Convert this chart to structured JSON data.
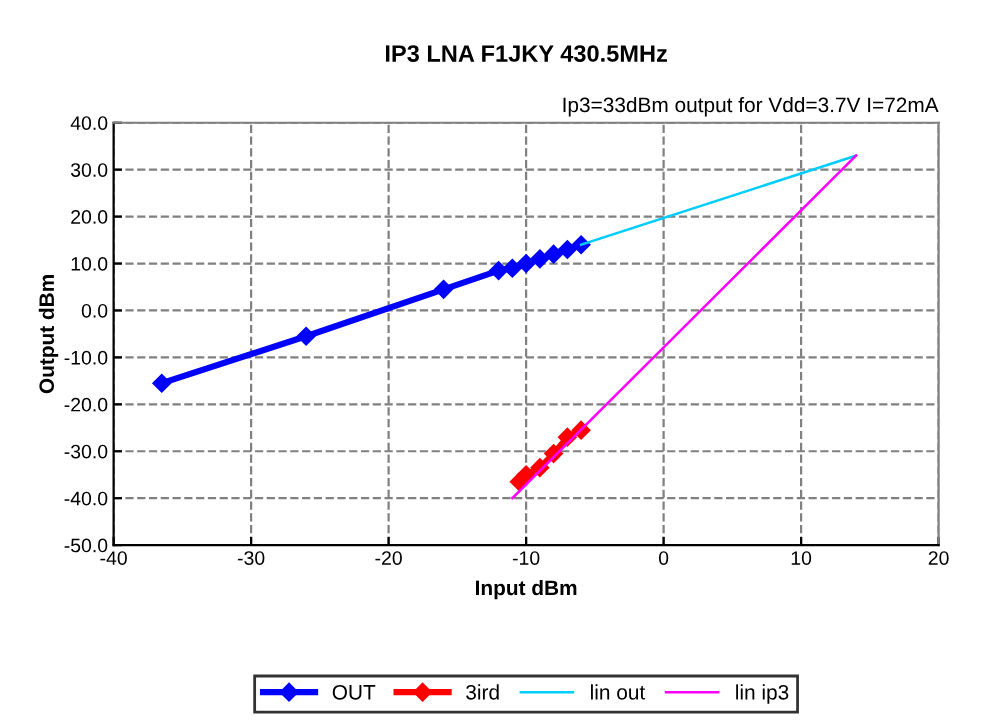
{
  "chart_data": {
    "type": "line",
    "title": "IP3 LNA F1JKY 430.5MHz",
    "xlabel": "Input dBm",
    "ylabel": "Output dBm",
    "annotations": [
      "Ip3=33dBm output for Vdd=3.7V I=72mA"
    ],
    "xlim": [
      -40,
      20
    ],
    "xticks": [
      -40,
      -30,
      -20,
      -10,
      0,
      10,
      20
    ],
    "ylim": [
      -50,
      40
    ],
    "yticks": [
      {
        "value": -50,
        "label": "-50.0"
      },
      {
        "value": -40,
        "label": "-40.0"
      },
      {
        "value": -30,
        "label": "-30.0"
      },
      {
        "value": -20,
        "label": "-20.0"
      },
      {
        "value": -10,
        "label": "-10.0"
      },
      {
        "value": 0,
        "label": "0.0"
      },
      {
        "value": 10,
        "label": "10.0"
      },
      {
        "value": 20,
        "label": "20.0"
      },
      {
        "value": 30,
        "label": "30.0"
      },
      {
        "value": 40,
        "label": "40.0"
      }
    ],
    "grid": true,
    "legend": "bottom",
    "series": [
      {
        "name": "OUT",
        "color": "#0000ff",
        "marker": "diamond",
        "x": [
          -36.5,
          -26,
          -16,
          -12,
          -11,
          -10,
          -9,
          -8,
          -7,
          -6
        ],
        "values": [
          -15.5,
          -5.5,
          4.5,
          8.5,
          9,
          10,
          11,
          12,
          13,
          14
        ]
      },
      {
        "name": "3ird",
        "color": "#ff0000",
        "marker": "diamond",
        "x": [
          -10.5,
          -10,
          -9,
          -8,
          -7,
          -6
        ],
        "values": [
          -36.5,
          -35,
          -33.5,
          -30.5,
          -27,
          -25.5
        ]
      },
      {
        "name": "lin out",
        "color": "#00ccff",
        "marker": "none",
        "x": [
          -6,
          14
        ],
        "values": [
          14,
          33
        ]
      },
      {
        "name": "lin ip3",
        "color": "#ff00ff",
        "marker": "none",
        "x": [
          -11,
          14
        ],
        "values": [
          -40,
          33
        ]
      }
    ]
  }
}
